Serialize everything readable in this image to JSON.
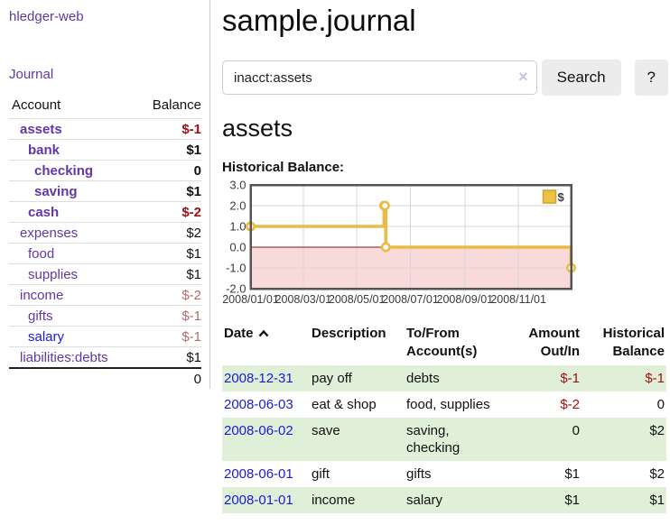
{
  "colors": {
    "accent_purple": "#6236A8",
    "link_blue": "#1A1AD6",
    "negative_red": "#A01010",
    "negative_muted": "#B06D6D",
    "row_green": "#E0F0D8",
    "chart_line_gold": "#E8BC45",
    "chart_negative_zone": "#F9DADA",
    "chart_zero_line": "#8F1212"
  },
  "sidebar": {
    "app_title": "hledger-web",
    "journal_link": "Journal",
    "accounts": {
      "header_account": "Account",
      "header_balance": "Balance",
      "rows": [
        {
          "name": "assets",
          "balance": "$-1"
        },
        {
          "name": "bank",
          "balance": "$1"
        },
        {
          "name": "checking",
          "balance": "0"
        },
        {
          "name": "saving",
          "balance": "$1"
        },
        {
          "name": "cash",
          "balance": "$-2"
        },
        {
          "name": "expenses",
          "balance": "$2"
        },
        {
          "name": "food",
          "balance": "$1"
        },
        {
          "name": "supplies",
          "balance": "$1"
        },
        {
          "name": "income",
          "balance": "$-2"
        },
        {
          "name": "gifts",
          "balance": "$-1"
        },
        {
          "name": "salary",
          "balance": "$-1"
        },
        {
          "name": "liabilities:debts",
          "balance": "$1"
        }
      ],
      "total": "0"
    }
  },
  "main": {
    "title": "sample.journal",
    "search": {
      "value": "inacct:assets",
      "clear_icon": "×",
      "button_label": "Search",
      "help_label": "?"
    },
    "heading": "assets",
    "register": {
      "headers": {
        "date": "Date",
        "description": "Description",
        "accounts": "To/From Account(s)",
        "amount": "Amount Out/In",
        "balance": "Historical Balance"
      },
      "sort_icon": "chevron-up",
      "rows": [
        {
          "date": "2008-12-31",
          "description": "pay off",
          "accounts": "debts",
          "amount": "$-1",
          "balance": "$-1"
        },
        {
          "date": "2008-06-03",
          "description": "eat & shop",
          "accounts": "food, supplies",
          "amount": "$-2",
          "balance": "0"
        },
        {
          "date": "2008-06-02",
          "description": "save",
          "accounts": "saving, checking",
          "amount": "0",
          "balance": "$2"
        },
        {
          "date": "2008-06-01",
          "description": "gift",
          "accounts": "gifts",
          "amount": "$1",
          "balance": "$2"
        },
        {
          "date": "2008-01-01",
          "description": "income",
          "accounts": "salary",
          "amount": "$1",
          "balance": "$1"
        }
      ]
    }
  },
  "chart_data": {
    "type": "line",
    "step": true,
    "title": "Historical Balance:",
    "legend": {
      "label": "$",
      "position": "top-right"
    },
    "series": [
      {
        "name": "$",
        "color": "#E8BC45",
        "points": [
          [
            "2008-01-01",
            1
          ],
          [
            "2008-06-01",
            2
          ],
          [
            "2008-06-02",
            2
          ],
          [
            "2008-06-03",
            0
          ],
          [
            "2008-12-31",
            -1
          ]
        ]
      }
    ],
    "xlim": [
      "2008-01-01",
      "2008-12-31"
    ],
    "ylim": [
      -2,
      3
    ],
    "x_ticks": [
      {
        "date": "2008-01-01",
        "label": "2008/01/01"
      },
      {
        "date": "2008-03-01",
        "label": "2008/03/01"
      },
      {
        "date": "2008-05-01",
        "label": "2008/05/01"
      },
      {
        "date": "2008-07-01",
        "label": "2008/07/01"
      },
      {
        "date": "2008-09-01",
        "label": "2008/09/01"
      },
      {
        "date": "2008-11-01",
        "label": "2008/11/01"
      }
    ],
    "y_ticks": [
      {
        "value": 3,
        "label": "3.0"
      },
      {
        "value": 2,
        "label": "2.0"
      },
      {
        "value": 1,
        "label": "1.0"
      },
      {
        "value": 0,
        "label": "0.0"
      },
      {
        "value": -1,
        "label": "-1.0"
      },
      {
        "value": -2,
        "label": "-2.0"
      }
    ],
    "grid": true,
    "negative_zone_color": "#F9DADA",
    "zero_line_color": "#8F1212"
  }
}
